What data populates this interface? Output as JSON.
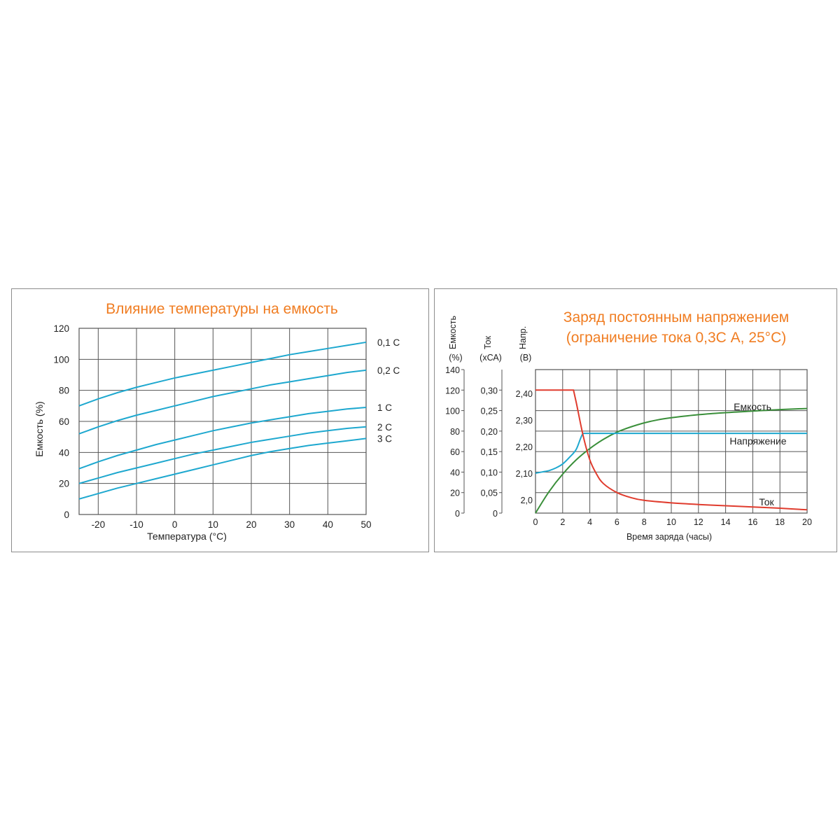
{
  "colors": {
    "title": "#f07d22",
    "grid": "#555555",
    "blue": "#1ea8cf",
    "green": "#3a8f3a",
    "red": "#e03c2e"
  },
  "chart_data": [
    {
      "type": "line",
      "title": "Влияние температуры на емкость",
      "xlabel": "Температура (°C)",
      "ylabel": "Емкость (%)",
      "xlim": [
        -25,
        50
      ],
      "ylim": [
        0,
        120
      ],
      "xticks": [
        -20,
        -10,
        0,
        10,
        20,
        30,
        40,
        50
      ],
      "xtick_labels": [
        "-20",
        "-10",
        "0",
        "10",
        "20",
        "30",
        "40",
        "50"
      ],
      "yticks": [
        0,
        20,
        40,
        60,
        80,
        100,
        120
      ],
      "ytick_labels": [
        "0",
        "20",
        "40",
        "60",
        "80",
        "100",
        "120"
      ],
      "grid": true,
      "x": [
        -25,
        -20,
        -15,
        -10,
        -5,
        0,
        5,
        10,
        15,
        20,
        25,
        30,
        35,
        40,
        45,
        50
      ],
      "series": [
        {
          "name": "0,1 C",
          "values": [
            70,
            74.5,
            78.5,
            82,
            85,
            88,
            90.5,
            93,
            95.5,
            98,
            100.5,
            103,
            105,
            107,
            109,
            111
          ]
        },
        {
          "name": "0,2 C",
          "values": [
            52,
            56.5,
            60.5,
            64,
            67,
            70,
            73,
            76,
            78.5,
            81,
            83.5,
            85.5,
            87.5,
            89.5,
            91.5,
            93
          ]
        },
        {
          "name": "1 C",
          "values": [
            29.5,
            34,
            38,
            41.5,
            45,
            48,
            51,
            54,
            56.5,
            59,
            61,
            63,
            65,
            66.5,
            68,
            69
          ]
        },
        {
          "name": "2 C",
          "values": [
            20,
            23.5,
            27,
            30,
            33,
            36,
            39,
            41.5,
            44,
            46.5,
            48.5,
            50.5,
            52.5,
            54,
            55.5,
            56.5
          ]
        },
        {
          "name": "3 C",
          "values": [
            10,
            13.5,
            17,
            20,
            23,
            26,
            29,
            32,
            35,
            38,
            40.5,
            42.5,
            44.5,
            46,
            47.5,
            49
          ]
        }
      ]
    },
    {
      "type": "line",
      "title": "Заряд постоянным напряжением",
      "subtitle": "(ограничение тока 0,3С А, 25°С)",
      "xlabel": "Время заряда (часы)",
      "xlim": [
        0,
        20
      ],
      "xticks": [
        0,
        2,
        4,
        6,
        8,
        10,
        12,
        14,
        16,
        18,
        20
      ],
      "xtick_labels": [
        "0",
        "2",
        "4",
        "6",
        "8",
        "10",
        "12",
        "14",
        "16",
        "18",
        "20"
      ],
      "grid": true,
      "axes": [
        {
          "name": "Емкость",
          "unit": "(%)",
          "ylim": [
            0,
            140
          ],
          "ticks": [
            0,
            20,
            40,
            60,
            80,
            100,
            120,
            140
          ],
          "tick_labels": [
            "0",
            "20",
            "40",
            "60",
            "80",
            "100",
            "120",
            "140"
          ]
        },
        {
          "name": "Ток",
          "unit": "(хСА)",
          "ylim": [
            0,
            0.35
          ],
          "ticks": [
            0,
            0.05,
            0.1,
            0.15,
            0.2,
            0.25,
            0.3
          ],
          "tick_labels": [
            "0",
            "0,05",
            "0,10",
            "0,15",
            "0,20",
            "0,25",
            "0,30"
          ]
        },
        {
          "name": "Напр.",
          "unit": "(В)",
          "ylim": [
            1.95,
            2.49
          ],
          "ticks": [
            2.0,
            2.1,
            2.2,
            2.3,
            2.4
          ],
          "tick_labels": [
            "2,0",
            "2,10",
            "2,20",
            "2,30",
            "2,40"
          ]
        }
      ],
      "series": [
        {
          "name": "Емкость",
          "axis": 0,
          "x": [
            0,
            1,
            2,
            3,
            4,
            5,
            6,
            7,
            8,
            9,
            10,
            12,
            14,
            16,
            18,
            20
          ],
          "values": [
            0,
            21,
            38,
            52,
            63,
            72,
            79,
            84,
            88,
            91,
            93,
            96,
            98,
            99.5,
            101,
            102
          ]
        },
        {
          "name": "Напряжение",
          "axis": 2,
          "x": [
            0,
            0.5,
            1,
            1.5,
            2,
            2.5,
            3,
            3.5,
            4,
            6,
            8,
            10,
            12,
            14,
            16,
            18,
            20
          ],
          "values": [
            2.1,
            2.105,
            2.11,
            2.12,
            2.135,
            2.16,
            2.19,
            2.25,
            2.25,
            2.25,
            2.25,
            2.25,
            2.25,
            2.25,
            2.25,
            2.25,
            2.25
          ]
        },
        {
          "name": "Ток",
          "axis": 1,
          "x": [
            0,
            2.8,
            3.0,
            3.5,
            4,
            4.5,
            5,
            6,
            7,
            8,
            10,
            12,
            14,
            16,
            18,
            20
          ],
          "values": [
            0.3,
            0.3,
            0.27,
            0.19,
            0.13,
            0.095,
            0.072,
            0.05,
            0.038,
            0.031,
            0.025,
            0.021,
            0.018,
            0.015,
            0.012,
            0.008
          ]
        }
      ]
    }
  ]
}
